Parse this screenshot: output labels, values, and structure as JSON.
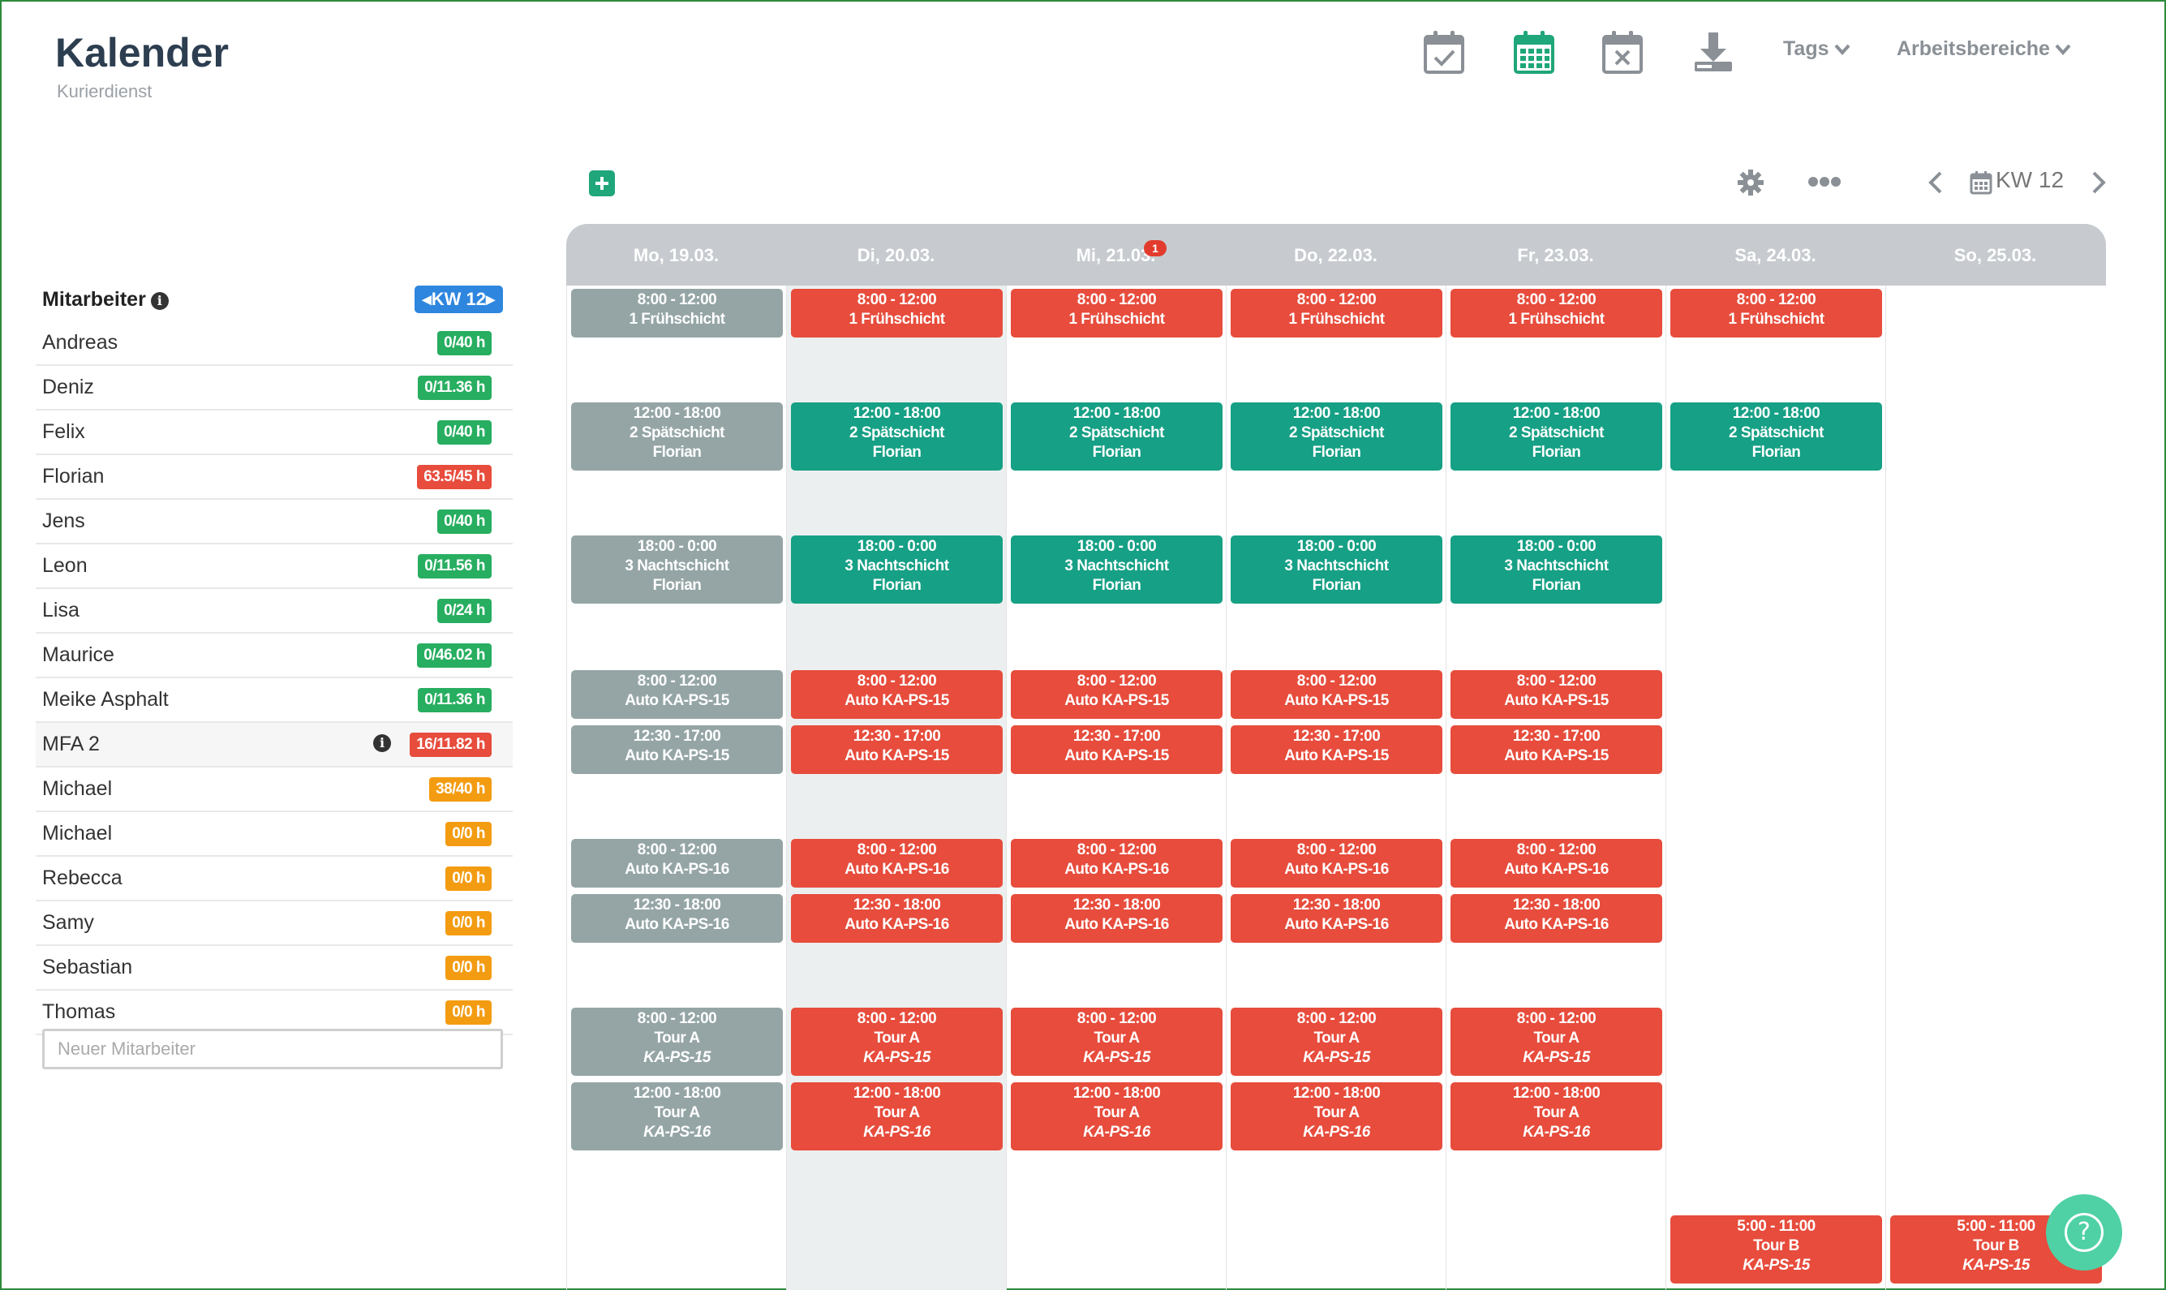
{
  "app": {
    "title": "Kalender",
    "subtitle": "Kurierdienst"
  },
  "toolbar": {
    "icons": [
      "calendar-check-icon",
      "calendar-grid-icon",
      "calendar-x-icon",
      "download-icon"
    ],
    "tags_label": "Tags",
    "areas_label": "Arbeitsbereiche",
    "accent": "#1fa67a"
  },
  "calendar_controls": {
    "week_label": "KW 12"
  },
  "employees_panel": {
    "title": "Mitarbeiter",
    "week_badge": "KW 12",
    "new_placeholder": "Neuer Mitarbeiter",
    "employees": [
      {
        "name": "Andreas",
        "hours": "0/40 h",
        "status": "green"
      },
      {
        "name": "Deniz",
        "hours": "0/11.36 h",
        "status": "green"
      },
      {
        "name": "Felix",
        "hours": "0/40 h",
        "status": "green"
      },
      {
        "name": "Florian",
        "hours": "63.5/45 h",
        "status": "red"
      },
      {
        "name": "Jens",
        "hours": "0/40 h",
        "status": "green"
      },
      {
        "name": "Leon",
        "hours": "0/11.56 h",
        "status": "green"
      },
      {
        "name": "Lisa",
        "hours": "0/24 h",
        "status": "green"
      },
      {
        "name": "Maurice",
        "hours": "0/46.02 h",
        "status": "green"
      },
      {
        "name": "Meike Asphalt",
        "hours": "0/11.36 h",
        "status": "green"
      },
      {
        "name": "MFA 2",
        "hours": "16/11.82 h",
        "status": "red",
        "info": true
      },
      {
        "name": "Michael",
        "hours": "38/40 h",
        "status": "orange"
      },
      {
        "name": "Michael",
        "hours": "0/0 h",
        "status": "orange"
      },
      {
        "name": "Rebecca",
        "hours": "0/0 h",
        "status": "orange"
      },
      {
        "name": "Samy",
        "hours": "0/0 h",
        "status": "orange"
      },
      {
        "name": "Sebastian",
        "hours": "0/0 h",
        "status": "orange"
      },
      {
        "name": "Thomas",
        "hours": "0/0 h",
        "status": "orange"
      }
    ]
  },
  "colors": {
    "green": "#27ae60",
    "red": "#e74c3c",
    "orange": "#f39c12",
    "blue": "#2e86de",
    "shift_grey": "#95a5a6",
    "shift_red": "#e74c3c",
    "shift_green": "#16a085"
  },
  "days": [
    {
      "label": "Mo, 19.03."
    },
    {
      "label": "Di, 20.03."
    },
    {
      "label": "Mi, 21.03.",
      "badge": "1"
    },
    {
      "label": "Do, 22.03."
    },
    {
      "label": "Fr, 23.03."
    },
    {
      "label": "Sa, 24.03."
    },
    {
      "label": "So, 25.03."
    }
  ],
  "shift_rows": [
    {
      "l1": "8:00 - 12:00",
      "l2": "1 Frühschicht",
      "days": [
        "grey",
        "red",
        "red",
        "red",
        "red",
        "red",
        null
      ]
    },
    {
      "l1": "12:00 - 18:00",
      "l2": "2 Spätschicht",
      "l3": "Florian",
      "days": [
        "grey",
        "green",
        "green",
        "green",
        "green",
        "green",
        null
      ]
    },
    {
      "l1": "18:00 - 0:00",
      "l2": "3 Nachtschicht",
      "l3": "Florian",
      "days": [
        "grey",
        "green",
        "green",
        "green",
        "green",
        null,
        null
      ]
    },
    {
      "l1": "8:00 - 12:00",
      "l2": "Auto KA-PS-15",
      "days": [
        "grey",
        "red",
        "red",
        "red",
        "red",
        null,
        null
      ]
    },
    {
      "l1": "12:30 - 17:00",
      "l2": "Auto KA-PS-15",
      "days": [
        "grey",
        "red",
        "red",
        "red",
        "red",
        null,
        null
      ]
    },
    {
      "l1": "8:00 - 12:00",
      "l2": "Auto KA-PS-16",
      "days": [
        "grey",
        "red",
        "red",
        "red",
        "red",
        null,
        null
      ]
    },
    {
      "l1": "12:30 - 18:00",
      "l2": "Auto KA-PS-16",
      "days": [
        "grey",
        "red",
        "red",
        "red",
        "red",
        null,
        null
      ]
    },
    {
      "l1": "8:00 - 12:00",
      "l2": "Tour A",
      "l3": "KA-PS-15",
      "l3_italic": true,
      "days": [
        "grey",
        "red",
        "red",
        "red",
        "red",
        null,
        null
      ]
    },
    {
      "l1": "12:00 - 18:00",
      "l2": "Tour A",
      "l3": "KA-PS-16",
      "l3_italic": true,
      "days": [
        "grey",
        "red",
        "red",
        "red",
        "red",
        null,
        null
      ]
    },
    {
      "l1": "5:00 - 11:00",
      "l2": "Tour B",
      "l3": "KA-PS-15",
      "l3_italic": true,
      "days": [
        null,
        null,
        null,
        null,
        null,
        "red",
        "red"
      ]
    }
  ],
  "help": {
    "icon": "question-icon",
    "glyph": "?"
  }
}
